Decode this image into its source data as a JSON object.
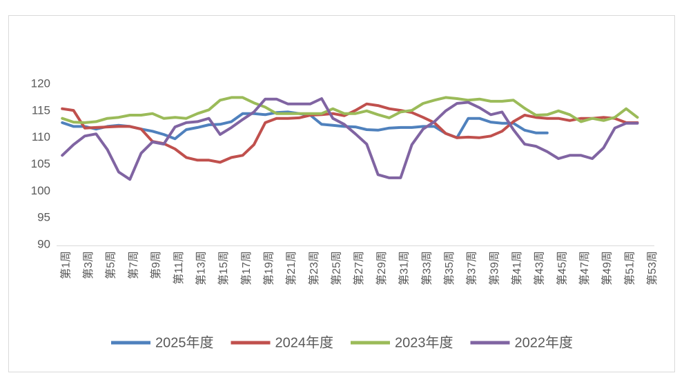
{
  "chart_data": {
    "type": "line",
    "categories": [
      "第1周",
      null,
      "第3周",
      null,
      "第5周",
      null,
      "第7周",
      null,
      "第9周",
      null,
      "第11周",
      null,
      "第13周",
      null,
      "第15周",
      null,
      "第17周",
      null,
      "第19周",
      null,
      "第21周",
      null,
      "第23周",
      null,
      "第25周",
      null,
      "第27周",
      null,
      "第29周",
      null,
      "第31周",
      null,
      "第33周",
      null,
      "第35周",
      null,
      "第37周",
      null,
      "第39周",
      null,
      "第41周",
      null,
      "第43周",
      null,
      "第45周",
      null,
      "第47周",
      null,
      "第49周",
      null,
      "第51周",
      null,
      "第53周"
    ],
    "series": [
      {
        "name": "2025年度",
        "color": "#4f81bd",
        "values": [
          112.8,
          112.1,
          112.1,
          111.6,
          112.1,
          112.3,
          112.1,
          111.6,
          111.2,
          110.6,
          109.8,
          111.5,
          111.9,
          112.4,
          112.5,
          113,
          114.5,
          114.5,
          114.3,
          114.7,
          114.8,
          114.5,
          114.2,
          112.5,
          112.3,
          112.1,
          112,
          111.5,
          111.4,
          111.8,
          111.9,
          111.9,
          112.1,
          112.1,
          110.8,
          110,
          113.6,
          113.6,
          112.9,
          112.7,
          112.7,
          111.4,
          110.9,
          110.9,
          null,
          null,
          null,
          null,
          null,
          null,
          null,
          null,
          null
        ]
      },
      {
        "name": "2024年度",
        "color": "#c0504d",
        "values": [
          115.4,
          115.1,
          111.8,
          111.9,
          112,
          112.1,
          112.1,
          111.6,
          109.3,
          108.9,
          107.9,
          106.3,
          105.8,
          105.8,
          105.4,
          106.3,
          106.7,
          108.7,
          112.8,
          113.6,
          113.6,
          113.7,
          114.2,
          114.3,
          114.5,
          114.1,
          115.1,
          116.3,
          116,
          115.4,
          115.1,
          114.7,
          113.8,
          112.8,
          110.8,
          110,
          110.1,
          110,
          110.3,
          111.2,
          113,
          114.2,
          113.8,
          113.6,
          113.6,
          113.2,
          113.6,
          113.6,
          113.8,
          113.6,
          112.8,
          112.8,
          null
        ]
      },
      {
        "name": "2023年度",
        "color": "#9bbb59",
        "values": [
          113.6,
          112.9,
          112.8,
          113,
          113.6,
          113.8,
          114.2,
          114.2,
          114.5,
          113.6,
          113.8,
          113.6,
          114.5,
          115.2,
          117,
          117.5,
          117.5,
          116.5,
          115.7,
          114.5,
          114.5,
          114.5,
          114.5,
          114.5,
          115.4,
          114.5,
          114.5,
          115,
          114.3,
          113.7,
          114.8,
          115.1,
          116.4,
          117,
          117.5,
          117.3,
          117,
          117.2,
          116.8,
          116.8,
          117,
          115.5,
          114.2,
          114.3,
          115,
          114.3,
          113,
          113.6,
          113.2,
          113.8,
          115.4,
          113.8,
          null
        ]
      },
      {
        "name": "2022年度",
        "color": "#8064a2",
        "values": [
          106.7,
          108.7,
          110.3,
          110.7,
          107.8,
          103.6,
          102.2,
          107.1,
          109.2,
          108.8,
          112,
          112.8,
          113,
          113.6,
          110.6,
          111.9,
          113.4,
          114.8,
          117.2,
          117.2,
          116.3,
          116.3,
          116.3,
          117.3,
          113.6,
          112.5,
          110.7,
          108.8,
          103.1,
          102.5,
          102.5,
          108.7,
          111.6,
          113,
          115,
          116.4,
          116.6,
          115.6,
          114.3,
          114.8,
          111.5,
          108.8,
          108.4,
          107.4,
          106.1,
          106.7,
          106.7,
          106.1,
          108.1,
          111.8,
          112.7,
          112.7,
          null
        ]
      }
    ],
    "ylim": [
      90,
      120
    ],
    "yticks": [
      90,
      95,
      100,
      105,
      110,
      115,
      120
    ],
    "grid": false,
    "legend": "bottom"
  }
}
